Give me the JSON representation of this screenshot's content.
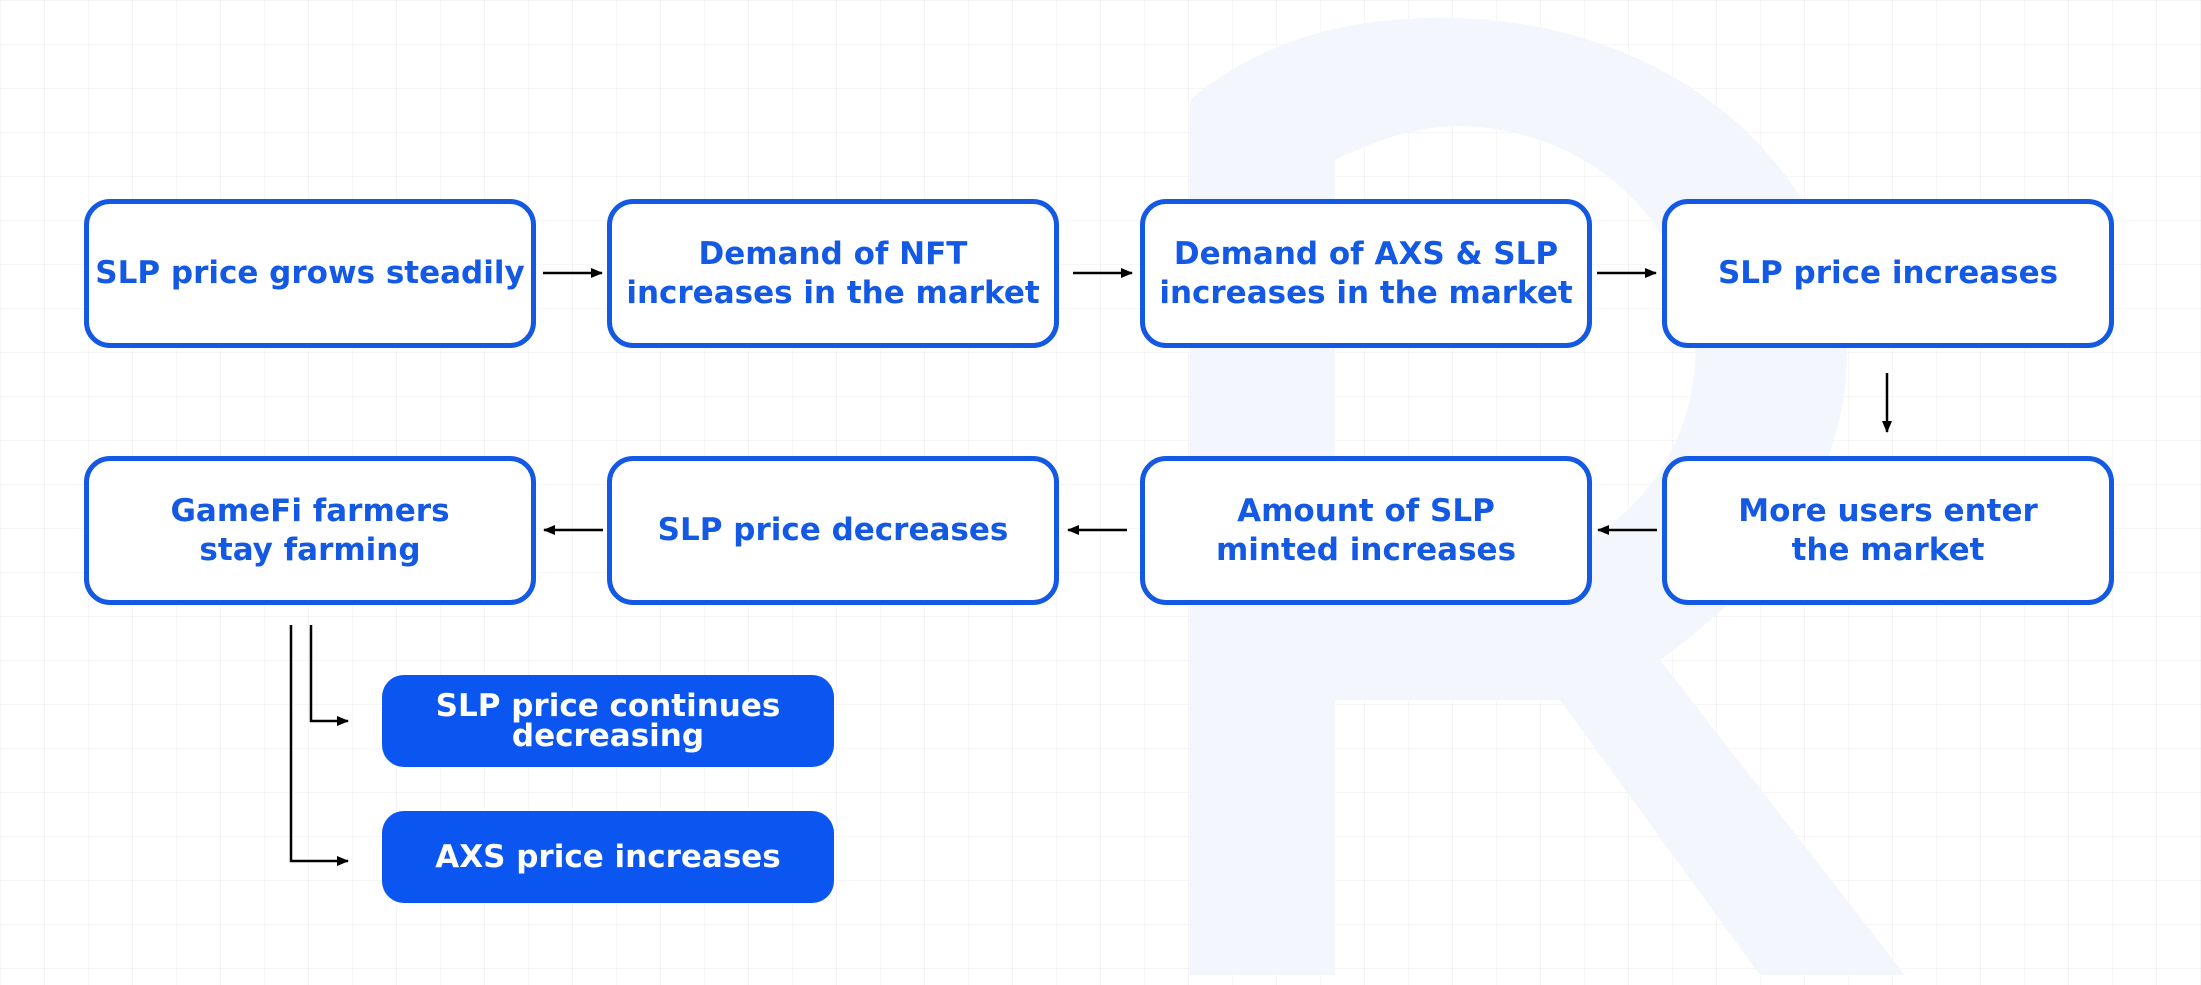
{
  "diagram": {
    "watermark_icon": "r-logo-icon",
    "colors": {
      "accent": "#1459e3",
      "filled": "#0b55f0",
      "arrow": "#000000",
      "watermark": "#f3f6fd"
    },
    "row1": [
      {
        "label": "SLP price grows steadily"
      },
      {
        "label": "Demand of NFT\nincreases in the market"
      },
      {
        "label": "Demand of AXS & SLP\nincreases in the market"
      },
      {
        "label": "SLP price increases"
      }
    ],
    "row2": [
      {
        "label": "GameFi farmers\nstay farming"
      },
      {
        "label": "SLP price decreases"
      },
      {
        "label": "Amount of SLP\nminted increases"
      },
      {
        "label": "More users enter\nthe market"
      }
    ],
    "outcomes": [
      {
        "label": "SLP price continues\ndecreasing"
      },
      {
        "label": "AXS price increases"
      }
    ]
  }
}
